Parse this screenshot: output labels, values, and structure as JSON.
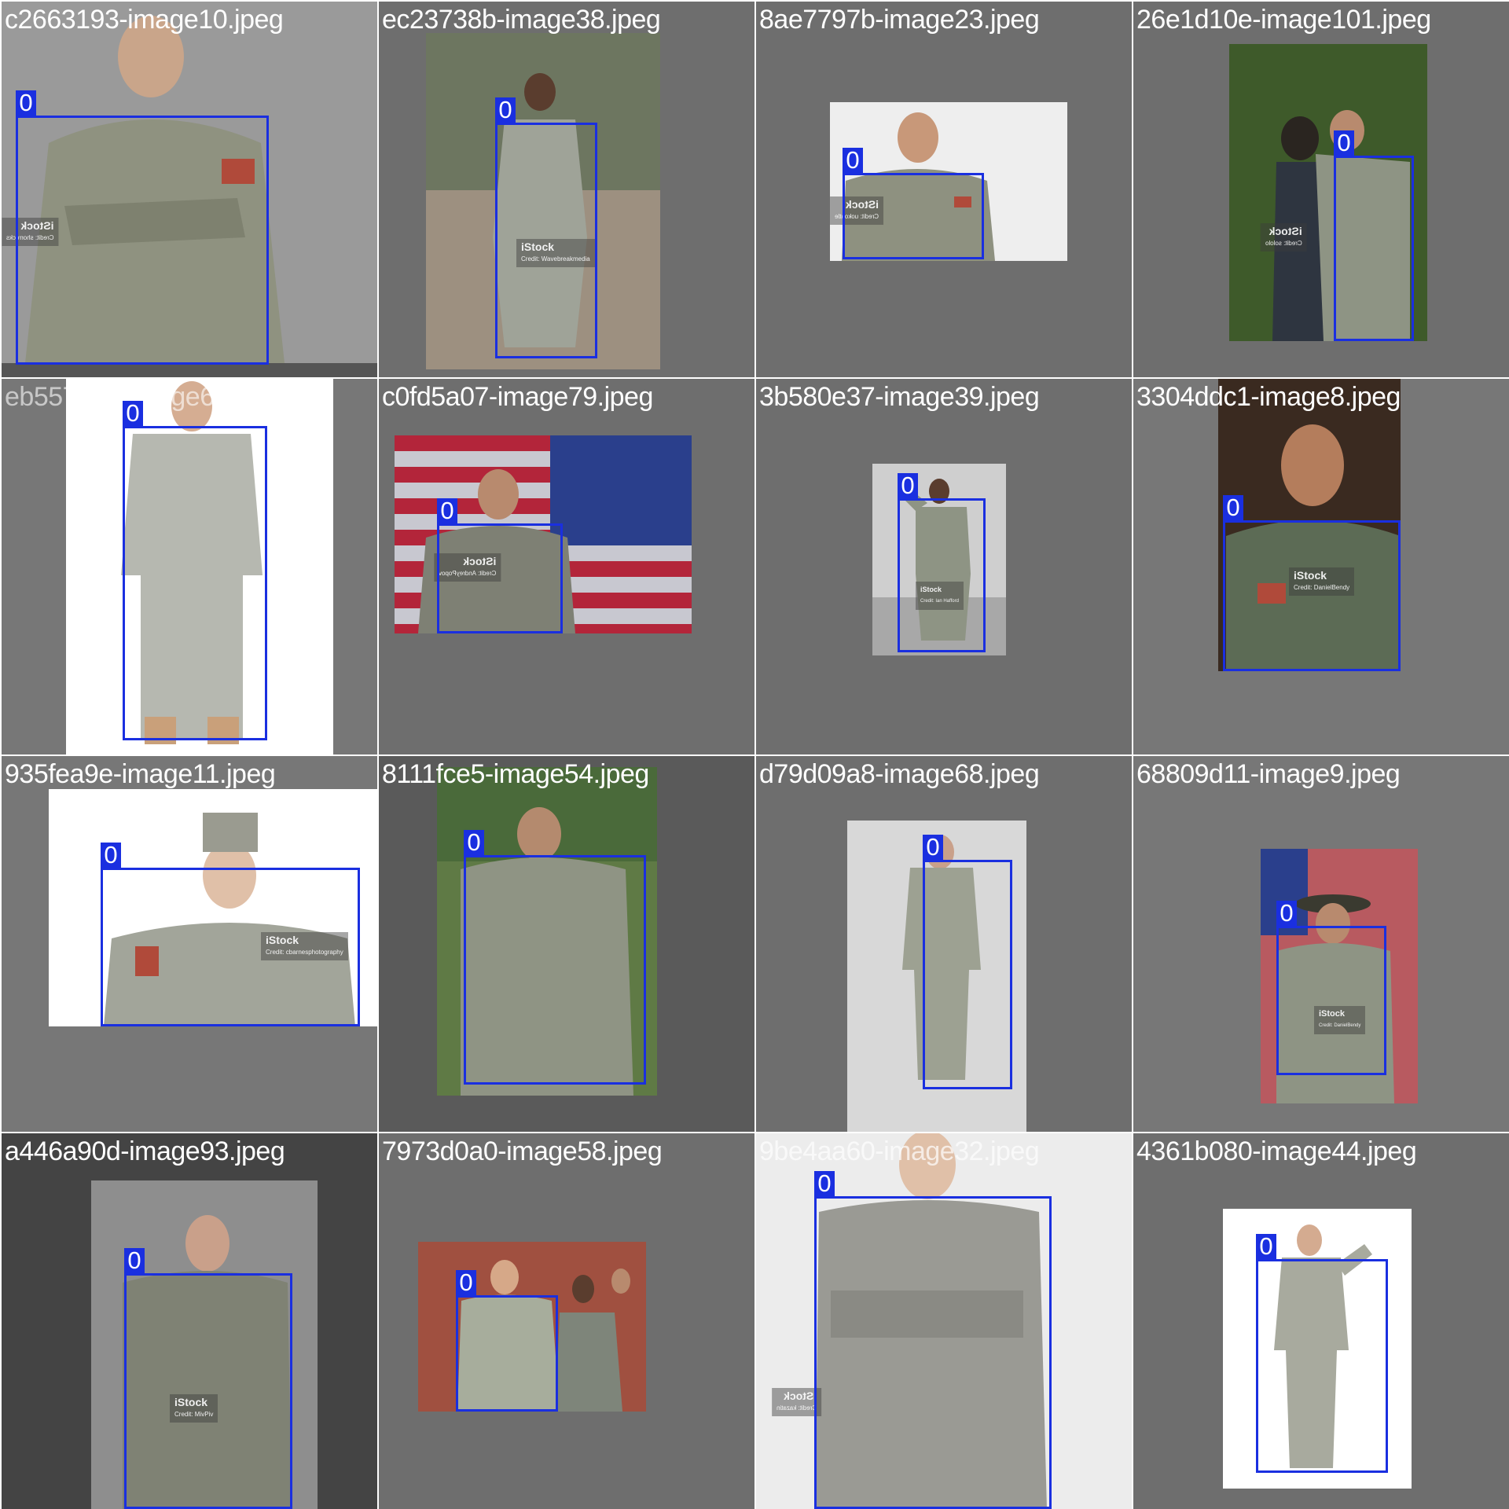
{
  "box_color": "#1a2fe0",
  "tiles": [
    {
      "filename": "c2663193-image10.jpeg",
      "label": "0",
      "watermark": {
        "brand": "iStock",
        "credit": "Credit: shorrocks"
      }
    },
    {
      "filename": "ec23738b-image38.jpeg",
      "label": "0",
      "watermark": {
        "brand": "iStock",
        "credit": "Credit: Wavebreakmedia"
      }
    },
    {
      "filename": "8ae7797b-image23.jpeg",
      "label": "0",
      "watermark": {
        "brand": "iStock",
        "credit": "Credit: uokoatle"
      }
    },
    {
      "filename": "26e1d10e-image101.jpeg",
      "label": "0",
      "watermark": {
        "brand": "iStock",
        "credit": "Credit: sololo"
      }
    },
    {
      "filename": "eb5577da-image69.jpeg",
      "label": "0"
    },
    {
      "filename": "c0fd5a07-image79.jpeg",
      "label": "0",
      "watermark": {
        "brand": "iStock",
        "credit": "Credit: AndreyPopov"
      }
    },
    {
      "filename": "3b580e37-image39.jpeg",
      "label": "0",
      "watermark": {
        "brand": "iStock",
        "credit": "Credit: Ian Hafford"
      }
    },
    {
      "filename": "3304ddc1-image8.jpeg",
      "label": "0",
      "watermark": {
        "brand": "iStock",
        "credit": "Credit: DanielBendy"
      }
    },
    {
      "filename": "935fea9e-image11.jpeg",
      "label": "0",
      "watermark": {
        "brand": "iStock",
        "credit": "Credit: cbarnesphotography"
      }
    },
    {
      "filename": "8111fce5-image54.jpeg",
      "label": "0"
    },
    {
      "filename": "d79d09a8-image68.jpeg",
      "label": "0"
    },
    {
      "filename": "68809d11-image9.jpeg",
      "label": "0",
      "watermark": {
        "brand": "iStock",
        "credit": "Credit: DanielBendy"
      }
    },
    {
      "filename": "a446a90d-image93.jpeg",
      "label": "0",
      "watermark": {
        "brand": "iStock",
        "credit": "Credit: MivPiv"
      }
    },
    {
      "filename": "7973d0a0-image58.jpeg",
      "label": "0"
    },
    {
      "filename": "9be4aa60-image32.jpeg",
      "label": "0",
      "watermark": {
        "brand": "iStock",
        "credit": "Credit: kazatin"
      }
    },
    {
      "filename": "4361b080-image44.jpeg",
      "label": "0"
    }
  ]
}
